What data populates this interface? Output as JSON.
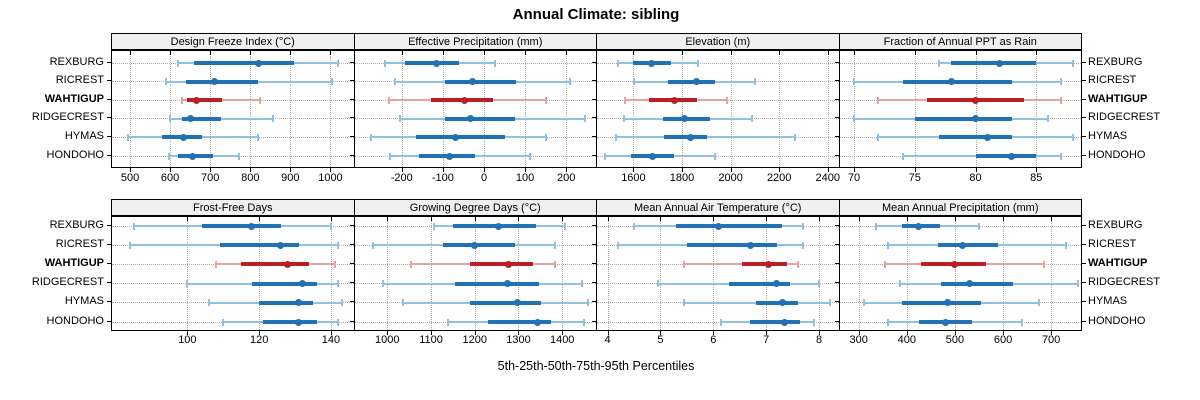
{
  "title": "Annual Climate: sibling",
  "caption": "5th-25th-50th-75th-95th Percentiles",
  "percentile_levels": [
    "5th",
    "25th",
    "50th",
    "75th",
    "95th"
  ],
  "stations": [
    {
      "label": "REXBURG",
      "emphasis": false
    },
    {
      "label": "RICREST",
      "emphasis": false
    },
    {
      "label": "WAHTIGUP",
      "emphasis": true
    },
    {
      "label": "RIDGECREST",
      "emphasis": false
    },
    {
      "label": "HYMAS",
      "emphasis": false
    },
    {
      "label": "HONDOHO",
      "emphasis": false
    }
  ],
  "colors": {
    "series_dark": "#2171b5",
    "series_light": "#92c1df",
    "emphasis_dark": "#b82025",
    "emphasis_light": "#e6a3a3",
    "grid": "#adadad",
    "header_bg": "#f0f0f0",
    "border": "#000000"
  },
  "chart_data": {
    "type": "interval-dotplot",
    "layout": {
      "grid_rows": 2,
      "grid_cols": 4,
      "legend": "none",
      "grid": "dotted"
    },
    "panels": [
      {
        "title": "Design Freeze Index (°C)",
        "axis_range": [
          455,
          1055
        ],
        "ticks": [
          500,
          600,
          700,
          800,
          900,
          1000
        ],
        "rows": [
          {
            "station": "REXBURG",
            "values": [
              620,
              660,
              820,
              910,
              1020
            ]
          },
          {
            "station": "RICREST",
            "values": [
              590,
              640,
              710,
              820,
              1005
            ]
          },
          {
            "station": "WAHTIGUP",
            "values": [
              630,
              642,
              665,
              730,
              825
            ]
          },
          {
            "station": "RIDGECREST",
            "values": [
              600,
              630,
              652,
              728,
              856
            ]
          },
          {
            "station": "HYMAS",
            "values": [
              494,
              580,
              634,
              679,
              820
            ]
          },
          {
            "station": "HONDOHO",
            "values": [
              597,
              620,
              657,
              706,
              772
            ]
          }
        ]
      },
      {
        "title": "Effective Precipitation (mm)",
        "axis_range": [
          -315,
          270
        ],
        "ticks": [
          -200,
          -100,
          0,
          100,
          200
        ],
        "rows": [
          {
            "station": "REXBURG",
            "values": [
              -240,
              -192,
              -115,
              -61,
              26
            ]
          },
          {
            "station": "RICREST",
            "values": [
              -216,
              -95,
              -27,
              77,
              210
            ]
          },
          {
            "station": "WAHTIGUP",
            "values": [
              -232,
              -130,
              -48,
              23,
              151
            ]
          },
          {
            "station": "RIDGECREST",
            "values": [
              -204,
              -94,
              -33,
              76,
              245
            ]
          },
          {
            "station": "HYMAS",
            "values": [
              -275,
              -166,
              -70,
              52,
              151
            ]
          },
          {
            "station": "HONDOHO",
            "values": [
              -228,
              -158,
              -83,
              -21,
              111
            ]
          }
        ]
      },
      {
        "title": "Elevation (m)",
        "axis_range": [
          1450,
          2440
        ],
        "ticks": [
          1600,
          1800,
          2000,
          2200,
          2400
        ],
        "rows": [
          {
            "station": "REXBURG",
            "values": [
              1537,
              1600,
              1676,
              1756,
              1866
            ]
          },
          {
            "station": "RICREST",
            "values": [
              1604,
              1743,
              1858,
              1936,
              2099
            ]
          },
          {
            "station": "WAHTIGUP",
            "values": [
              1564,
              1664,
              1767,
              1863,
              1984
            ]
          },
          {
            "station": "RIDGECREST",
            "values": [
              1561,
              1722,
              1809,
              1914,
              2086
            ]
          },
          {
            "station": "HYMAS",
            "values": [
              1529,
              1726,
              1833,
              1902,
              2263
            ]
          },
          {
            "station": "HONDOHO",
            "values": [
              1484,
              1591,
              1680,
              1769,
              1936
            ]
          }
        ]
      },
      {
        "title": "Fraction of Annual PPT as Rain",
        "axis_range": [
          68.8,
          88.6
        ],
        "ticks": [
          70,
          75,
          80,
          85
        ],
        "rows": [
          {
            "station": "REXBURG",
            "values": [
              77,
              78,
              82,
              85,
              88
            ]
          },
          {
            "station": "RICREST",
            "values": [
              70,
              74,
              78,
              83,
              87
            ]
          },
          {
            "station": "WAHTIGUP",
            "values": [
              72,
              76,
              80,
              84,
              87
            ]
          },
          {
            "station": "RIDGECREST",
            "values": [
              70,
              75,
              80,
              83,
              86
            ]
          },
          {
            "station": "HYMAS",
            "values": [
              72,
              77,
              81,
              83,
              88
            ]
          },
          {
            "station": "HONDOHO",
            "values": [
              74,
              80,
              83,
              85,
              87
            ]
          }
        ]
      },
      {
        "title": "Frost-Free Days",
        "axis_range": [
          79,
          146
        ],
        "ticks": [
          100,
          120,
          140
        ],
        "rows": [
          {
            "station": "REXBURG",
            "values": [
              85,
              104,
              118,
              126,
              140
            ]
          },
          {
            "station": "RICREST",
            "values": [
              84,
              109,
              126,
              131,
              142
            ]
          },
          {
            "station": "WAHTIGUP",
            "values": [
              108,
              115,
              128,
              134,
              141
            ]
          },
          {
            "station": "RIDGECREST",
            "values": [
              100,
              118,
              132,
              136,
              142
            ]
          },
          {
            "station": "HYMAS",
            "values": [
              106,
              120,
              131,
              135,
              143
            ]
          },
          {
            "station": "HONDOHO",
            "values": [
              110,
              121,
              131,
              136,
              142
            ]
          }
        ]
      },
      {
        "title": "Growing Degree Days (°C)",
        "axis_range": [
          925,
          1475
        ],
        "ticks": [
          1000,
          1100,
          1200,
          1300,
          1400
        ],
        "rows": [
          {
            "station": "REXBURG",
            "values": [
              1106,
              1150,
              1255,
              1341,
              1406
            ]
          },
          {
            "station": "RICREST",
            "values": [
              968,
              1128,
              1200,
              1291,
              1383
            ]
          },
          {
            "station": "WAHTIGUP",
            "values": [
              1055,
              1190,
              1278,
              1333,
              1383
            ]
          },
          {
            "station": "RIDGECREST",
            "values": [
              990,
              1155,
              1276,
              1348,
              1446
            ]
          },
          {
            "station": "HYMAS",
            "values": [
              1035,
              1190,
              1298,
              1352,
              1459
            ]
          },
          {
            "station": "HONDOHO",
            "values": [
              1139,
              1230,
              1343,
              1375,
              1450
            ]
          }
        ]
      },
      {
        "title": "Mean Annual Air Temperature (°C)",
        "axis_range": [
          3.8,
          8.35
        ],
        "ticks": [
          4,
          5,
          6,
          7,
          8
        ],
        "rows": [
          {
            "station": "REXBURG",
            "values": [
              4.5,
              5.3,
              6.1,
              7.3,
              7.7
            ]
          },
          {
            "station": "RICREST",
            "values": [
              4.2,
              5.5,
              6.7,
              7.2,
              7.7
            ]
          },
          {
            "station": "WAHTIGUP",
            "values": [
              5.45,
              6.55,
              7.05,
              7.4,
              7.6
            ]
          },
          {
            "station": "RIDGECREST",
            "values": [
              4.95,
              6.3,
              7.2,
              7.45,
              8.0
            ]
          },
          {
            "station": "HYMAS",
            "values": [
              5.45,
              6.8,
              7.3,
              7.6,
              8.2
            ]
          },
          {
            "station": "HONDOHO",
            "values": [
              6.15,
              6.7,
              7.35,
              7.65,
              7.9
            ]
          }
        ]
      },
      {
        "title": "Mean Annual Precipitation (mm)",
        "axis_range": [
          260,
          760
        ],
        "ticks": [
          300,
          400,
          500,
          600,
          700
        ],
        "rows": [
          {
            "station": "REXBURG",
            "values": [
              335,
              390,
              425,
              470,
              550
            ]
          },
          {
            "station": "RICREST",
            "values": [
              360,
              465,
              515,
              590,
              730
            ]
          },
          {
            "station": "WAHTIGUP",
            "values": [
              355,
              430,
              500,
              565,
              685
            ]
          },
          {
            "station": "RIDGECREST",
            "values": [
              385,
              470,
              530,
              620,
              755
            ]
          },
          {
            "station": "HYMAS",
            "values": [
              310,
              390,
              485,
              555,
              675
            ]
          },
          {
            "station": "HONDOHO",
            "values": [
              360,
              425,
              480,
              535,
              640
            ]
          }
        ]
      }
    ]
  }
}
